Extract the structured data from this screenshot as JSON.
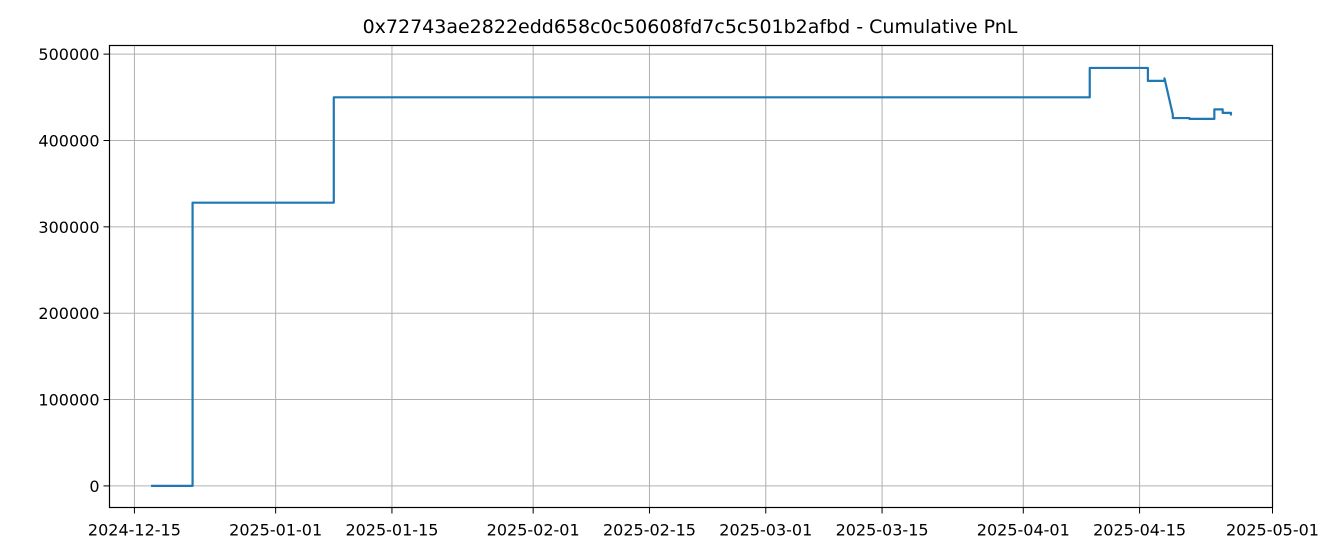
{
  "chart_data": {
    "type": "line",
    "title": "0x72743ae2822edd658c0c50608fd7c5c501b2afbd - Cumulative PnL",
    "xlabel": "",
    "ylabel": "",
    "x_axis_type": "date",
    "xlim": [
      "2024-12-12",
      "2025-05-01"
    ],
    "ylim": [
      -25000,
      510000
    ],
    "grid": true,
    "line_color": "#1f77b4",
    "x_tick_labels": [
      "2024-12-15",
      "2025-01-01",
      "2025-01-15",
      "2025-02-01",
      "2025-02-15",
      "2025-03-01",
      "2025-03-15",
      "2025-04-01",
      "2025-04-15",
      "2025-05-01"
    ],
    "y_tick_labels": [
      "0",
      "100000",
      "200000",
      "300000",
      "400000",
      "500000"
    ],
    "y_ticks": [
      0,
      100000,
      200000,
      300000,
      400000,
      500000
    ],
    "series": [
      {
        "values": [
          [
            "2024-12-17",
            0
          ],
          [
            "2024-12-22",
            0
          ],
          [
            "2024-12-22",
            328000
          ],
          [
            "2025-01-08",
            328000
          ],
          [
            "2025-01-08",
            450000
          ],
          [
            "2025-04-09",
            450000
          ],
          [
            "2025-04-09",
            484000
          ],
          [
            "2025-04-16",
            484000
          ],
          [
            "2025-04-16",
            469000
          ],
          [
            "2025-04-18",
            469000
          ],
          [
            "2025-04-18",
            472000
          ],
          [
            "2025-04-19",
            430000
          ],
          [
            "2025-04-19",
            426000
          ],
          [
            "2025-04-21",
            426000
          ],
          [
            "2025-04-21",
            425000
          ],
          [
            "2025-04-24",
            425000
          ],
          [
            "2025-04-24",
            436000
          ],
          [
            "2025-04-25",
            436000
          ],
          [
            "2025-04-25",
            432000
          ],
          [
            "2025-04-26",
            432000
          ],
          [
            "2025-04-26",
            429000
          ]
        ]
      }
    ]
  }
}
